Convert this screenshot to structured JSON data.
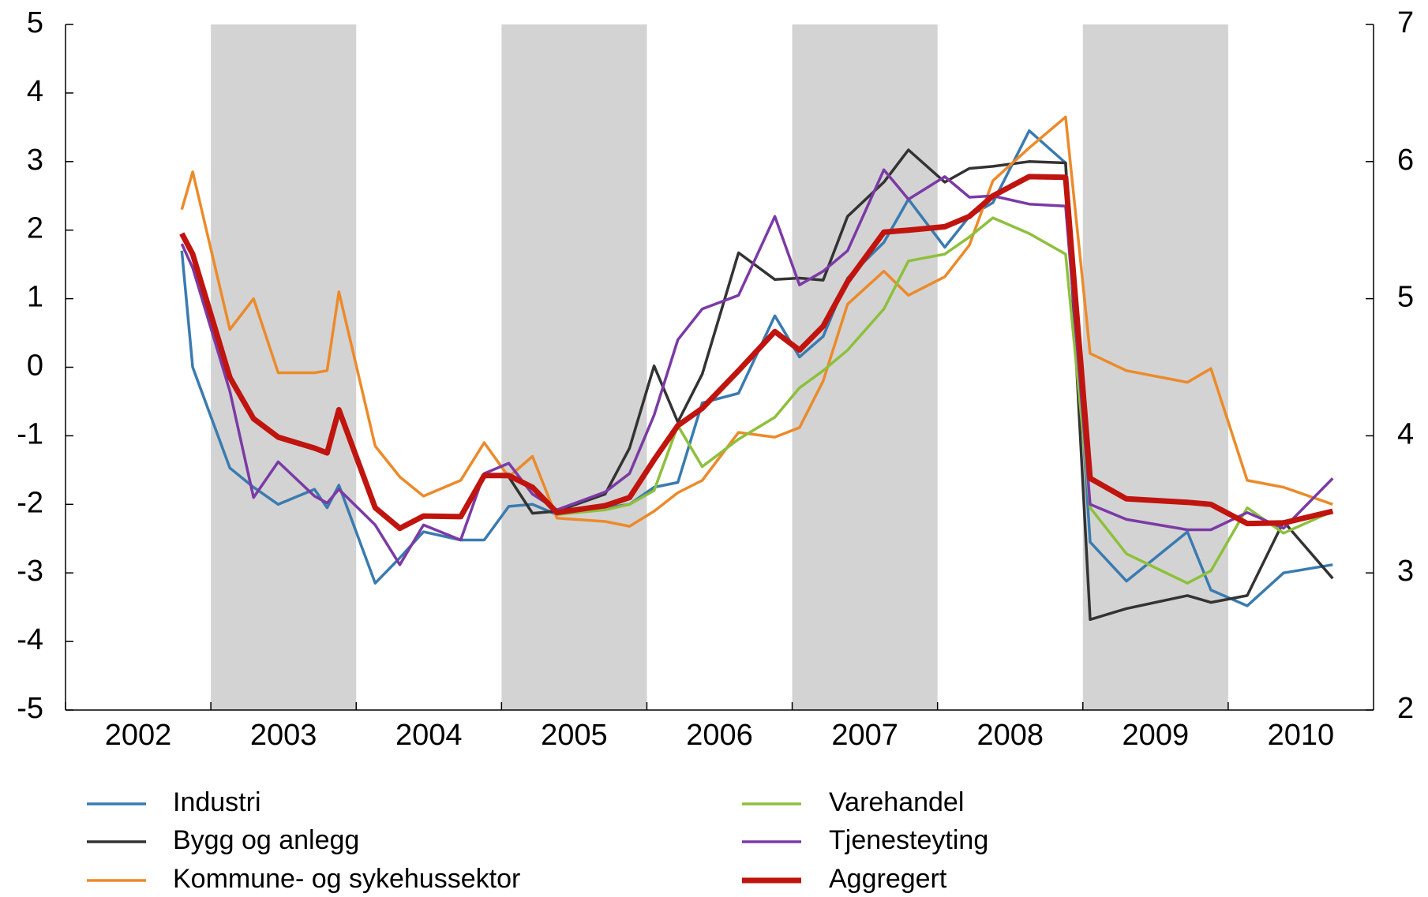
{
  "chart_data": {
    "type": "line",
    "x": [
      2002.8,
      2002.875,
      2003.131,
      2003.294,
      2003.463,
      2003.713,
      2003.8,
      2003.881,
      2004.131,
      2004.3,
      2004.463,
      2004.719,
      2004.881,
      2005.05,
      2005.213,
      2005.381,
      2005.713,
      2005.881,
      2006.05,
      2006.213,
      2006.381,
      2006.631,
      2006.881,
      2007.05,
      2007.213,
      2007.381,
      2007.631,
      2007.8,
      2008.05,
      2008.219,
      2008.381,
      2008.631,
      2008.881,
      2009.05,
      2009.3,
      2009.719,
      2009.881,
      2010.131,
      2010.381,
      2010.719
    ],
    "xlim": [
      2002,
      2011
    ],
    "xticks": [
      2002,
      2003,
      2004,
      2005,
      2006,
      2007,
      2008,
      2009,
      2010
    ],
    "shaded_years": [
      2003,
      2005,
      2007,
      2009
    ],
    "shade_color": "#d3d3d3",
    "ylim": [
      -5,
      5
    ],
    "yticks": [
      -5,
      -4,
      -3,
      -2,
      -1,
      0,
      1,
      2,
      3,
      4,
      5
    ],
    "y2lim": [
      2,
      7
    ],
    "y2ticks": [
      2,
      3,
      4,
      5,
      6,
      7
    ],
    "series": [
      {
        "name": "Industri",
        "color": "#3a7bb0",
        "linewidth": 3.5,
        "values": [
          1.7,
          0.0,
          -1.47,
          -1.75,
          -2.0,
          -1.78,
          -2.05,
          -1.72,
          -3.15,
          -2.78,
          -2.4,
          -2.52,
          -2.52,
          -2.03,
          -2.0,
          -2.15,
          -2.05,
          -2.0,
          -1.75,
          -1.68,
          -0.52,
          -0.38,
          0.75,
          0.15,
          0.45,
          1.3,
          1.82,
          2.45,
          1.75,
          2.2,
          2.4,
          3.45,
          2.98,
          -2.55,
          -3.12,
          -2.4,
          -3.25,
          -3.48,
          -3.0,
          -2.88
        ]
      },
      {
        "name": "Bygg og anlegg",
        "color": "#333333",
        "linewidth": 3.5,
        "values": [
          null,
          null,
          null,
          null,
          null,
          null,
          null,
          null,
          null,
          null,
          null,
          null,
          null,
          -1.6,
          -2.13,
          -2.1,
          -1.85,
          -1.18,
          0.02,
          -0.8,
          -0.1,
          1.67,
          1.28,
          1.3,
          1.27,
          2.2,
          2.7,
          3.17,
          2.7,
          2.9,
          2.93,
          3.0,
          2.98,
          -3.68,
          -3.52,
          -3.33,
          -3.43,
          -3.33,
          -2.25,
          -3.08
        ]
      },
      {
        "name": "Kommune- og sykehussektor",
        "color": "#ec8a2a",
        "linewidth": 3.5,
        "values": [
          2.3,
          2.85,
          0.55,
          1.0,
          -0.08,
          -0.08,
          -0.05,
          1.1,
          -1.15,
          -1.6,
          -1.88,
          -1.65,
          -1.1,
          -1.6,
          -1.3,
          -2.2,
          -2.25,
          -2.32,
          -2.1,
          -1.83,
          -1.65,
          -0.95,
          -1.02,
          -0.88,
          -0.2,
          0.92,
          1.4,
          1.05,
          1.32,
          1.78,
          2.72,
          3.2,
          3.65,
          0.2,
          -0.05,
          -0.22,
          -0.02,
          -1.65,
          -1.75,
          -2.0
        ]
      },
      {
        "name": "Varehandel",
        "color": "#8dc03c",
        "linewidth": 3.5,
        "values": [
          null,
          null,
          null,
          null,
          null,
          null,
          null,
          null,
          null,
          null,
          null,
          null,
          null,
          null,
          null,
          -2.15,
          -2.08,
          -2.0,
          -1.8,
          -0.85,
          -1.45,
          -1.05,
          -0.73,
          -0.3,
          -0.05,
          0.25,
          0.85,
          1.55,
          1.65,
          1.9,
          2.18,
          1.95,
          1.65,
          -2.05,
          -2.72,
          -3.15,
          -2.97,
          -2.05,
          -2.42,
          -2.1
        ]
      },
      {
        "name": "Tjenesteyting",
        "color": "#7b3aa5",
        "linewidth": 3.5,
        "values": [
          1.8,
          1.45,
          -0.35,
          -1.9,
          -1.38,
          -1.88,
          -1.98,
          -1.78,
          -2.3,
          -2.88,
          -2.3,
          -2.52,
          -1.55,
          -1.4,
          -1.85,
          -2.08,
          -1.82,
          -1.55,
          -0.7,
          0.4,
          0.85,
          1.05,
          2.2,
          1.2,
          1.4,
          1.7,
          2.88,
          2.45,
          2.78,
          2.48,
          2.5,
          2.38,
          2.35,
          -2.0,
          -2.22,
          -2.37,
          -2.37,
          -2.12,
          -2.35,
          -1.62
        ]
      },
      {
        "name": "Aggregert",
        "color": "#c0140f",
        "linewidth": 7,
        "values": [
          1.95,
          1.65,
          -0.15,
          -0.75,
          -1.02,
          -1.18,
          -1.25,
          -0.62,
          -2.05,
          -2.35,
          -2.17,
          -2.18,
          -1.58,
          -1.58,
          -1.75,
          -2.12,
          -2.02,
          -1.9,
          -1.35,
          -0.85,
          -0.6,
          -0.05,
          0.52,
          0.25,
          0.6,
          1.25,
          1.97,
          2.0,
          2.05,
          2.2,
          2.5,
          2.78,
          2.77,
          -1.62,
          -1.92,
          -1.97,
          -2.0,
          -2.28,
          -2.27,
          -2.1
        ]
      }
    ]
  }
}
